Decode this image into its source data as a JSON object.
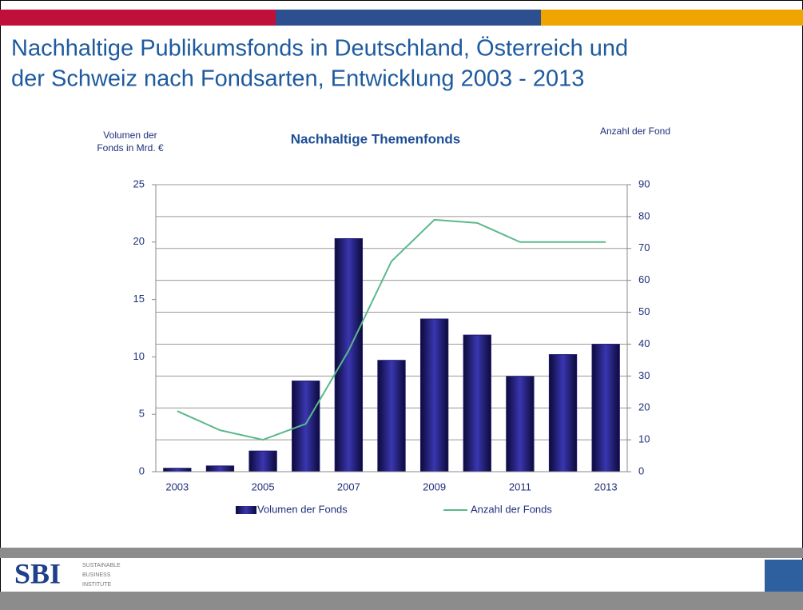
{
  "header": {
    "title": [
      "Nachhaltige Publikumsfonds in Deutschland, Österreich und",
      "der Schweiz nach Fondsarten, Entwicklung 2003 - 2013"
    ]
  },
  "chart_data": {
    "type": "bar_line",
    "title": "Nachhaltige Themenfonds",
    "y_label": [
      "Volumen der",
      "Fonds in Mrd. €"
    ],
    "y2_label": "Anzahl der Fond",
    "categories": [
      "2003",
      null,
      "2005",
      null,
      "2007",
      null,
      "2009",
      null,
      "2011",
      null,
      "2013"
    ],
    "series": [
      {
        "name": "Volumen der Fonds",
        "type": "bar",
        "color": "#1f1a6e",
        "values": [
          0.3,
          0.5,
          1.8,
          7.9,
          20.3,
          9.7,
          13.3,
          11.9,
          8.3,
          10.2,
          11.1
        ]
      },
      {
        "name": "Anzahl der Fonds",
        "type": "line",
        "axis": "y2",
        "color": "#5bb88c",
        "values": [
          19,
          13,
          10,
          15,
          38,
          66,
          79,
          78,
          72,
          72,
          72
        ]
      }
    ],
    "ylim": [
      0,
      25
    ],
    "yticks": [
      0,
      5,
      10,
      15,
      20,
      25
    ],
    "y2lim": [
      0,
      90
    ],
    "y2ticks": [
      0,
      10,
      20,
      30,
      40,
      50,
      60,
      70,
      80,
      90
    ],
    "grid": "y2",
    "legend": "bottom"
  },
  "footer": {
    "logo": "SBI",
    "logo_text": [
      "SUSTAINABLE",
      "BUSINESS",
      "INSTITUTE"
    ]
  }
}
